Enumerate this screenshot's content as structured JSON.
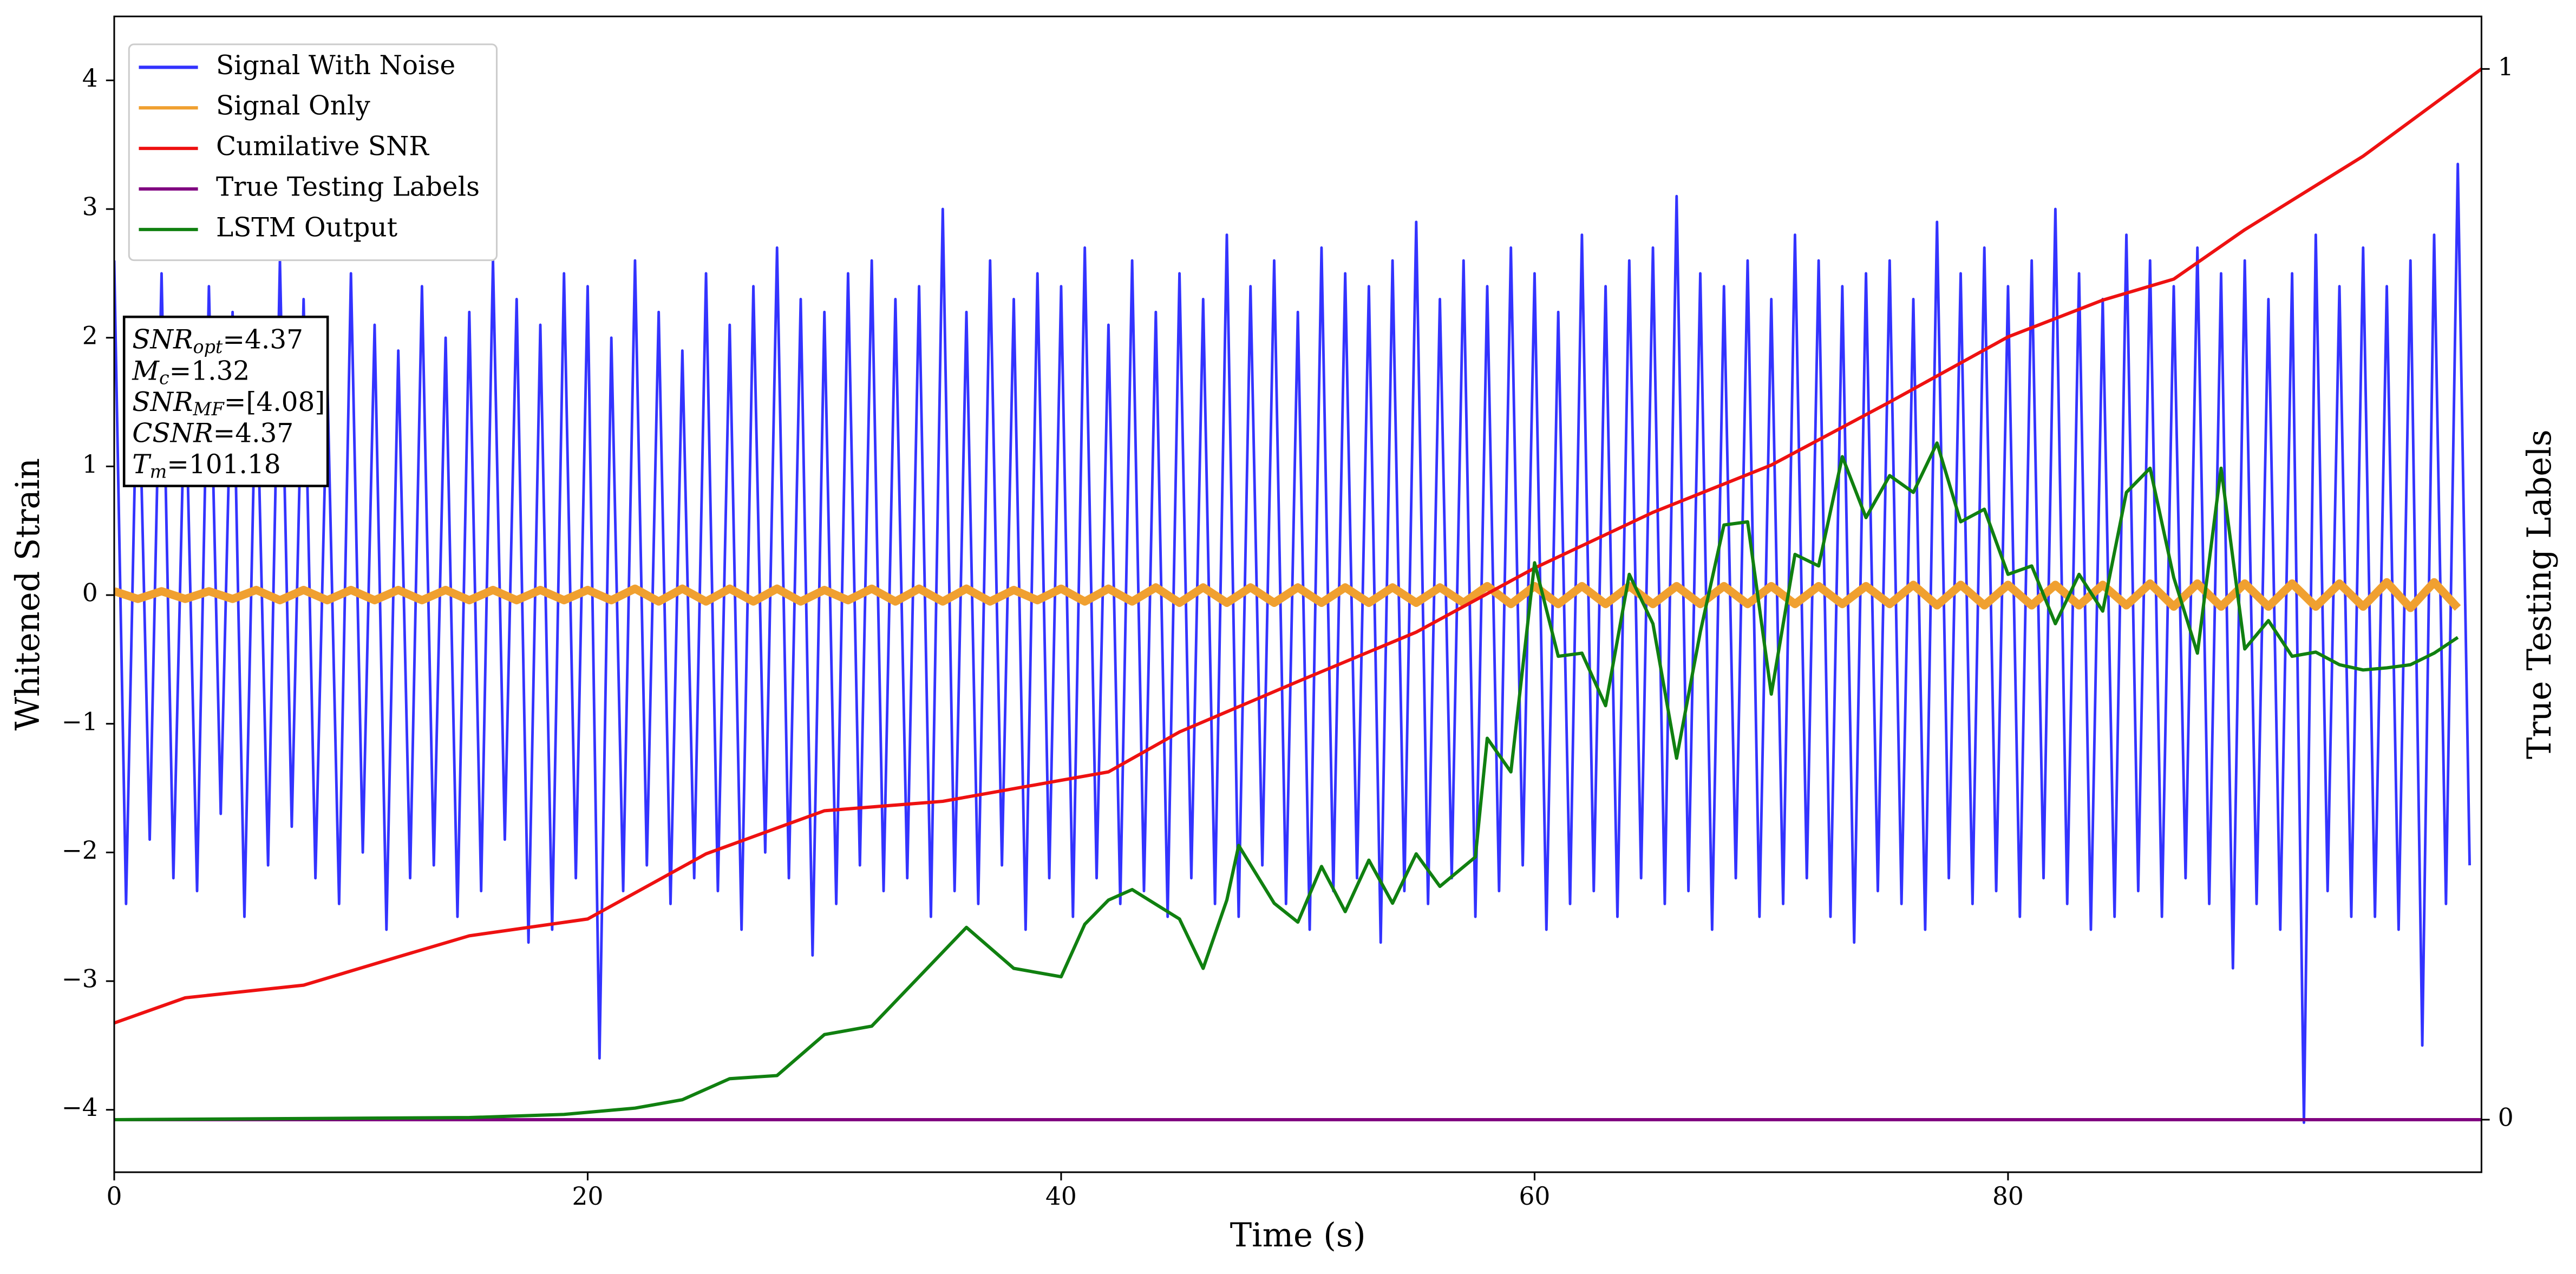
{
  "chart_data": {
    "type": "line",
    "xlabel": "Time (s)",
    "ylabel": "Whitened Strain",
    "y2label": "True Testing Labels",
    "xlim": [
      0,
      100
    ],
    "xticks": [
      0,
      20,
      40,
      60,
      80
    ],
    "ylim": [
      -4.485,
      4.497
    ],
    "yticks": [
      {
        "value": -4,
        "label": "−4"
      },
      {
        "value": -3,
        "label": "−3"
      },
      {
        "value": -2,
        "label": "−2"
      },
      {
        "value": -1,
        "label": "−1"
      },
      0,
      1,
      2,
      3,
      4
    ],
    "y2lim": [
      -0.05,
      1.05
    ],
    "y2ticks": [
      0,
      1
    ],
    "legend": "upper left",
    "annotation": [
      {
        "symbol": "SNR",
        "subscript": "opt",
        "text": "=4.37"
      },
      {
        "symbol": "M",
        "subscript": "c",
        "text": "=1.32"
      },
      {
        "symbol": "SNR",
        "subscript": "MF",
        "text": "=[4.08]"
      },
      {
        "symbol": "CSNR",
        "text": "=4.37"
      },
      {
        "symbol": "T",
        "subscript": "m",
        "text": "=101.18"
      }
    ],
    "series": [
      {
        "name": "Signal With Noise",
        "color": "#3333ff",
        "x": [
          0,
          0.5,
          1,
          1.5,
          2,
          2.5,
          3,
          3.5,
          4,
          4.5,
          5,
          5.5,
          6,
          6.5,
          7,
          7.5,
          8,
          8.5,
          9,
          9.5,
          10,
          10.5,
          11,
          11.5,
          12,
          12.5,
          13,
          13.5,
          14,
          14.5,
          15,
          15.5,
          16,
          16.5,
          17,
          17.5,
          18,
          18.5,
          19,
          19.5,
          20,
          20.5,
          21,
          21.5,
          22,
          22.5,
          23,
          23.5,
          24,
          24.5,
          25,
          25.5,
          26,
          26.5,
          27,
          27.5,
          28,
          28.5,
          29,
          29.5,
          30,
          30.5,
          31,
          31.5,
          32,
          32.5,
          33,
          33.5,
          34,
          34.5,
          35,
          35.5,
          36,
          36.5,
          37,
          37.5,
          38,
          38.5,
          39,
          39.5,
          40,
          40.5,
          41,
          41.5,
          42,
          42.5,
          43,
          43.5,
          44,
          44.5,
          45,
          45.5,
          46,
          46.5,
          47,
          47.5,
          48,
          48.5,
          49,
          49.5,
          50,
          50.5,
          51,
          51.5,
          52,
          52.5,
          53,
          53.5,
          54,
          54.5,
          55,
          55.5,
          56,
          56.5,
          57,
          57.5,
          58,
          58.5,
          59,
          59.5,
          60,
          60.5,
          61,
          61.5,
          62,
          62.5,
          63,
          63.5,
          64,
          64.5,
          65,
          65.5,
          66,
          66.5,
          67,
          67.5,
          68,
          68.5,
          69,
          69.5,
          70,
          70.5,
          71,
          71.5,
          72,
          72.5,
          73,
          73.5,
          74,
          74.5,
          75,
          75.5,
          76,
          76.5,
          77,
          77.5,
          78,
          78.5,
          79,
          79.5,
          80,
          80.5,
          81,
          81.5,
          82,
          82.5,
          83,
          83.5,
          84,
          84.5,
          85,
          85.5,
          86,
          86.5,
          87,
          87.5,
          88,
          88.5,
          89,
          89.5,
          90,
          90.5,
          91,
          91.5,
          92,
          92.5,
          93,
          93.5,
          94,
          94.5,
          95,
          95.5,
          96,
          96.5,
          97,
          97.5,
          98,
          98.5,
          99,
          99.5
        ],
        "values": [
          2.6,
          -2.4,
          2.1,
          -1.9,
          2.5,
          -2.2,
          1.8,
          -2.3,
          2.4,
          -1.7,
          2.2,
          -2.5,
          1.9,
          -2.1,
          2.6,
          -1.8,
          2.3,
          -2.2,
          1.7,
          -2.4,
          2.5,
          -2.0,
          2.1,
          -2.6,
          1.9,
          -2.2,
          2.4,
          -2.1,
          2.0,
          -2.5,
          2.2,
          -2.3,
          2.6,
          -1.9,
          2.3,
          -2.7,
          2.1,
          -2.6,
          2.5,
          -2.2,
          2.4,
          -3.6,
          2.0,
          -2.3,
          2.6,
          -2.1,
          2.2,
          -2.4,
          1.9,
          -2.2,
          2.5,
          -2.3,
          2.1,
          -2.6,
          2.4,
          -2.0,
          2.7,
          -2.2,
          2.3,
          -2.8,
          2.2,
          -2.4,
          2.5,
          -2.1,
          2.6,
          -2.3,
          2.3,
          -2.2,
          2.4,
          -2.5,
          3.0,
          -2.3,
          2.2,
          -2.4,
          2.6,
          -2.1,
          2.3,
          -2.6,
          2.5,
          -2.2,
          2.4,
          -2.5,
          2.7,
          -2.2,
          2.1,
          -2.4,
          2.6,
          -2.3,
          2.2,
          -2.5,
          2.5,
          -2.2,
          2.3,
          -2.4,
          2.8,
          -2.5,
          2.4,
          -2.1,
          2.6,
          -2.4,
          2.2,
          -2.6,
          2.7,
          -2.3,
          2.5,
          -2.2,
          2.4,
          -2.7,
          2.6,
          -2.3,
          2.9,
          -2.4,
          2.3,
          -2.2,
          2.6,
          -2.5,
          2.4,
          -2.3,
          2.7,
          -2.1,
          2.5,
          -2.6,
          2.2,
          -2.4,
          2.8,
          -2.3,
          2.4,
          -2.5,
          2.6,
          -2.2,
          2.7,
          -2.4,
          3.1,
          -2.3,
          2.5,
          -2.6,
          2.4,
          -2.2,
          2.6,
          -2.5,
          2.3,
          -2.4,
          2.8,
          -2.2,
          2.6,
          -2.5,
          2.4,
          -2.7,
          2.5,
          -2.3,
          2.6,
          -2.4,
          2.3,
          -2.6,
          2.9,
          -2.2,
          2.5,
          -2.4,
          2.7,
          -2.3,
          2.4,
          -2.5,
          2.6,
          -2.2,
          3.0,
          -2.4,
          2.5,
          -2.6,
          2.3,
          -2.5,
          2.8,
          -2.3,
          2.6,
          -2.5,
          2.4,
          -2.2,
          2.7,
          -2.4,
          2.5,
          -2.9,
          2.6,
          -2.4,
          2.3,
          -2.6,
          2.5,
          -4.1,
          2.8,
          -2.3,
          2.4,
          -2.5,
          2.7,
          -2.5,
          2.4,
          -2.6,
          2.6,
          -3.5,
          2.8,
          -2.4,
          3.35,
          -2.1
        ]
      },
      {
        "name": "Signal Only",
        "color": "#f0a030",
        "x": [
          0,
          1,
          2,
          3,
          4,
          5,
          6,
          7,
          8,
          9,
          10,
          11,
          12,
          13,
          14,
          15,
          16,
          17,
          18,
          19,
          20,
          21,
          22,
          23,
          24,
          25,
          26,
          27,
          28,
          29,
          30,
          31,
          32,
          33,
          34,
          35,
          36,
          37,
          38,
          39,
          40,
          41,
          42,
          43,
          44,
          45,
          46,
          47,
          48,
          49,
          50,
          51,
          52,
          53,
          54,
          55,
          56,
          57,
          58,
          59,
          60,
          61,
          62,
          63,
          64,
          65,
          66,
          67,
          68,
          69,
          70,
          71,
          72,
          73,
          74,
          75,
          76,
          77,
          78,
          79,
          80,
          81,
          82,
          83,
          84,
          85,
          86,
          87,
          88,
          89,
          90,
          91,
          92,
          93,
          94,
          95,
          96,
          97,
          98,
          99
        ],
        "values": [
          0.03,
          -0.03,
          0.03,
          -0.03,
          0.03,
          -0.03,
          0.04,
          -0.04,
          0.04,
          -0.04,
          0.04,
          -0.04,
          0.04,
          -0.04,
          0.04,
          -0.04,
          0.04,
          -0.04,
          0.04,
          -0.04,
          0.04,
          -0.04,
          0.05,
          -0.05,
          0.05,
          -0.05,
          0.05,
          -0.05,
          0.05,
          -0.05,
          0.04,
          -0.04,
          0.05,
          -0.05,
          0.05,
          -0.05,
          0.05,
          -0.05,
          0.04,
          -0.04,
          0.05,
          -0.05,
          0.05,
          -0.05,
          0.06,
          -0.06,
          0.06,
          -0.06,
          0.06,
          -0.06,
          0.06,
          -0.06,
          0.06,
          -0.06,
          0.06,
          -0.06,
          0.06,
          -0.06,
          0.07,
          -0.07,
          0.07,
          -0.07,
          0.07,
          -0.07,
          0.07,
          -0.07,
          0.07,
          -0.07,
          0.07,
          -0.07,
          0.07,
          -0.07,
          0.07,
          -0.07,
          0.07,
          -0.07,
          0.08,
          -0.08,
          0.08,
          -0.08,
          0.08,
          -0.08,
          0.08,
          -0.08,
          0.08,
          -0.08,
          0.09,
          -0.09,
          0.09,
          -0.09,
          0.09,
          -0.09,
          0.09,
          -0.09,
          0.09,
          -0.09,
          0.1,
          -0.1,
          0.1,
          -0.1
        ]
      },
      {
        "name": "Cumilative SNR",
        "color": "#ee1111",
        "axis": "y2",
        "x": [
          0,
          3,
          8,
          12,
          15,
          20,
          25,
          30,
          35,
          40,
          42,
          45,
          50,
          55,
          60,
          65,
          70,
          75,
          80,
          84,
          87,
          90,
          95,
          100
        ],
        "values": [
          0.092,
          0.116,
          0.128,
          0.155,
          0.175,
          0.191,
          0.253,
          0.294,
          0.303,
          0.323,
          0.331,
          0.369,
          0.417,
          0.464,
          0.525,
          0.578,
          0.623,
          0.683,
          0.745,
          0.78,
          0.8,
          0.847,
          0.917,
          1.0
        ]
      },
      {
        "name": "True Testing Labels",
        "color": "#800080",
        "axis": "y2",
        "x": [
          0,
          100
        ],
        "values": [
          0,
          0
        ]
      },
      {
        "name": "LSTM Output",
        "color": "#108010",
        "axis": "y2",
        "x": [
          0,
          15,
          19,
          22,
          24,
          26,
          28,
          30,
          32,
          34,
          36,
          38,
          40,
          41,
          42,
          43,
          45,
          46,
          47,
          47.5,
          49,
          50,
          51,
          52,
          53,
          54,
          55,
          56,
          57.5,
          58,
          59,
          60,
          61,
          62,
          63,
          64,
          65,
          66,
          67,
          68,
          69,
          70,
          71,
          72,
          73,
          74,
          75,
          76,
          77,
          78,
          79,
          80,
          81,
          82,
          83,
          84,
          85,
          86,
          87,
          88,
          89,
          90,
          91,
          92,
          93,
          94,
          95,
          96,
          97,
          98,
          99
        ],
        "values": [
          0,
          0.002,
          0.005,
          0.011,
          0.019,
          0.039,
          0.042,
          0.081,
          0.089,
          0.136,
          0.183,
          0.144,
          0.136,
          0.186,
          0.209,
          0.219,
          0.191,
          0.144,
          0.209,
          0.261,
          0.206,
          0.188,
          0.241,
          0.198,
          0.247,
          0.206,
          0.253,
          0.222,
          0.25,
          0.363,
          0.331,
          0.53,
          0.441,
          0.444,
          0.394,
          0.519,
          0.472,
          0.344,
          0.464,
          0.566,
          0.569,
          0.405,
          0.538,
          0.527,
          0.631,
          0.573,
          0.613,
          0.597,
          0.644,
          0.569,
          0.581,
          0.519,
          0.527,
          0.472,
          0.519,
          0.484,
          0.597,
          0.62,
          0.516,
          0.444,
          0.62,
          0.448,
          0.475,
          0.441,
          0.445,
          0.433,
          0.428,
          0.43,
          0.433,
          0.444,
          0.459
        ]
      }
    ]
  }
}
